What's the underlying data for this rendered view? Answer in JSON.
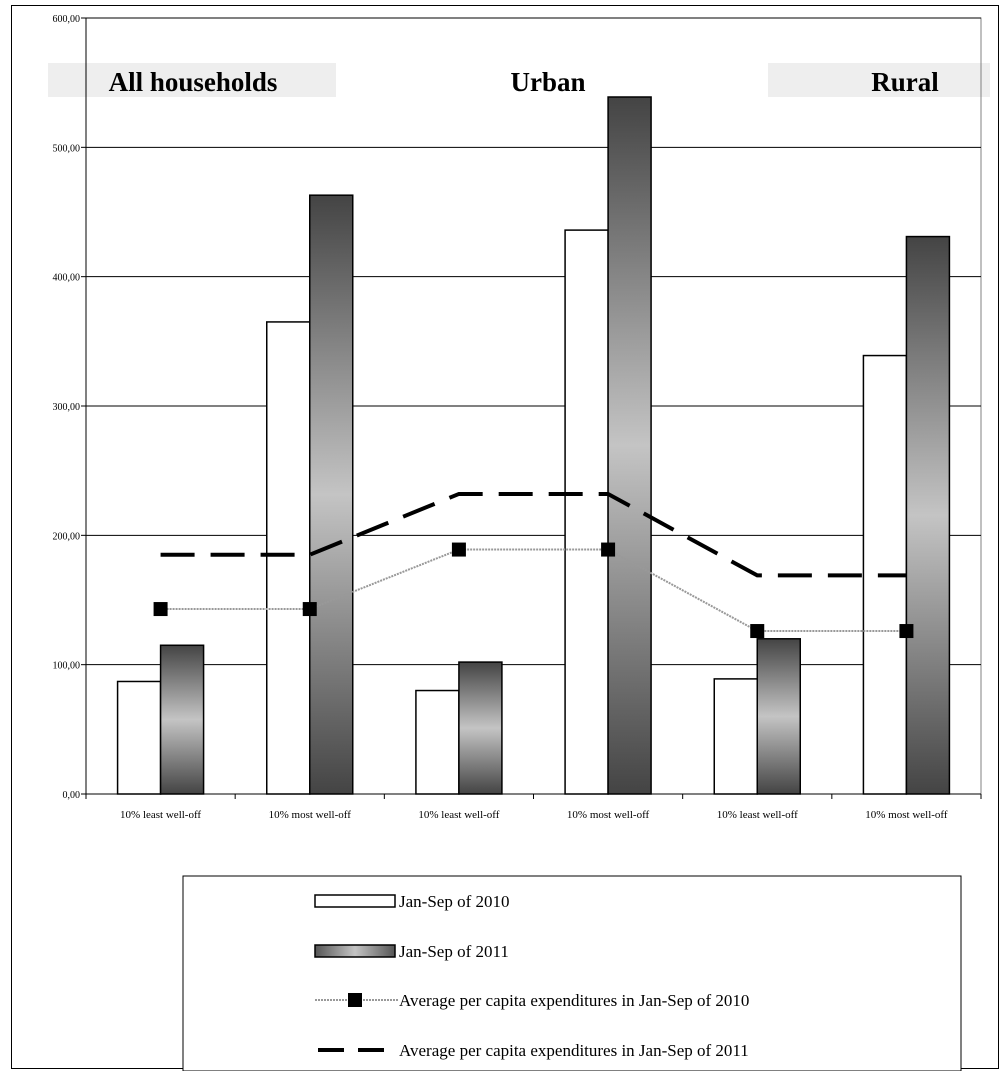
{
  "chart_data": {
    "type": "bar",
    "title": "",
    "xlabel": "",
    "ylabel": "",
    "ylim": [
      0,
      600
    ],
    "y_ticks": [
      "0,00",
      "100,00",
      "200,00",
      "300,00",
      "400,00",
      "500,00",
      "600,00"
    ],
    "grid": true,
    "legend_position": "bottom",
    "groups": [
      {
        "label": "All households",
        "shaded": true
      },
      {
        "label": "Urban",
        "shaded": false
      },
      {
        "label": "Rural",
        "shaded": true
      }
    ],
    "categories": [
      "10% least well-off",
      "10% most well-off",
      "10% least well-off",
      "10% most well-off",
      "10% least well-off",
      "10% most well-off"
    ],
    "series": [
      {
        "name": "Jan-Sep of 2010",
        "kind": "bar",
        "color": "#ffffff",
        "values": [
          87,
          365,
          80,
          436,
          89,
          339
        ]
      },
      {
        "name": "Jan-Sep of 2011",
        "kind": "bar",
        "color": "#808080",
        "values": [
          115,
          463,
          102,
          540,
          120,
          431
        ]
      },
      {
        "name": "Average per capita expenditures in Jan-Sep of 2010",
        "kind": "line",
        "color": "#999999",
        "marker": "square",
        "values": [
          143,
          143,
          189,
          189,
          126,
          126
        ]
      },
      {
        "name": "Average per capita expenditures in Jan-Sep of 2011",
        "kind": "line",
        "color": "#000000",
        "style": "dashed",
        "values": [
          185,
          185,
          232,
          232,
          169,
          169
        ]
      }
    ]
  }
}
